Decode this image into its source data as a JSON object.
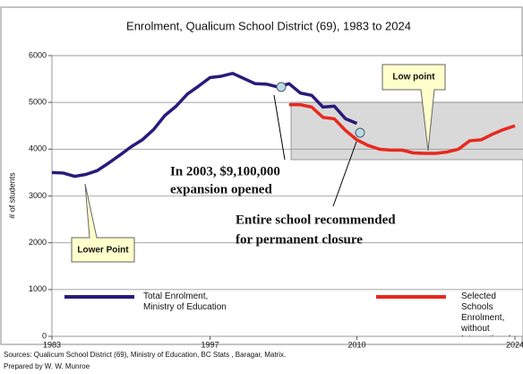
{
  "chart_data": {
    "type": "line",
    "title": "Enrolment, Qualicum School District (69), 1983 to 2024",
    "ylabel": "# of students",
    "xlim": [
      1983,
      2024
    ],
    "xticks": [
      1983,
      1997,
      2010,
      2024
    ],
    "ylim": [
      0,
      6000
    ],
    "yticks": [
      0,
      1000,
      2000,
      3000,
      4000,
      5000,
      6000
    ],
    "grid": true,
    "series": [
      {
        "name": "Total Enrolment,\nMinistry of Education",
        "color": "#2b1a7a",
        "x": [
          1983,
          1984,
          1985,
          1986,
          1987,
          1988,
          1989,
          1990,
          1991,
          1992,
          1993,
          1994,
          1995,
          1996,
          1997,
          1998,
          1999,
          2000,
          2001,
          2002,
          2003,
          2004,
          2005,
          2006,
          2007,
          2008,
          2009,
          2010
        ],
        "values": [
          3500,
          3490,
          3420,
          3460,
          3540,
          3700,
          3870,
          4050,
          4200,
          4420,
          4720,
          4920,
          5180,
          5350,
          5530,
          5560,
          5620,
          5510,
          5400,
          5390,
          5330,
          5400,
          5200,
          5150,
          4900,
          4920,
          4650,
          4550
        ]
      },
      {
        "name": "Selected Schools Enrolment,\nwithout International students,\nConsultant",
        "color": "#e8281e",
        "x": [
          2004,
          2005,
          2006,
          2007,
          2008,
          2009,
          2010,
          2011,
          2012,
          2013,
          2014,
          2015,
          2016,
          2017,
          2018,
          2019,
          2020,
          2021,
          2022,
          2023,
          2024
        ],
        "values": [
          4950,
          4950,
          4900,
          4680,
          4650,
          4400,
          4200,
          4080,
          4000,
          3980,
          3980,
          3920,
          3910,
          3910,
          3940,
          4000,
          4180,
          4200,
          4320,
          4420,
          4500
        ]
      }
    ],
    "annotations": [
      "In 2003, $9,100,000",
      "expansion opened",
      "Entire school recommended",
      "for permanent closure",
      "Low point",
      "Lower Point"
    ],
    "sources": [
      "Sources: Qualicum School District (69), Ministry of Education, BC Stats , Baragar, Matrix.",
      "Prepared by W. W. Munroe"
    ]
  }
}
